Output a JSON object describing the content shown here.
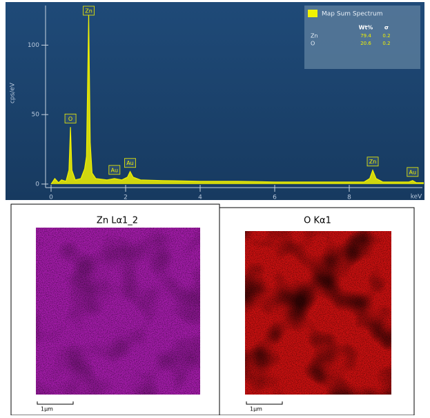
{
  "chart_data": {
    "type": "line",
    "xlabel": "keV",
    "ylabel": "cps/eV",
    "x": [
      0,
      0.1,
      0.2,
      0.28,
      0.4,
      0.48,
      0.52,
      0.56,
      0.65,
      0.8,
      0.9,
      0.95,
      1.01,
      1.05,
      1.1,
      1.2,
      1.5,
      1.7,
      1.9,
      2.05,
      2.12,
      2.2,
      2.4,
      3,
      4,
      5,
      6,
      7,
      8.4,
      8.55,
      8.63,
      8.72,
      8.9,
      9.6,
      9.7,
      9.8,
      10
    ],
    "series": [
      {
        "name": "Map Sum Spectrum",
        "color": "#f2f200",
        "values": [
          0,
          4,
          1,
          3,
          2,
          10,
          41,
          10,
          3,
          4,
          11,
          20,
          122,
          30,
          8,
          4,
          3,
          4,
          3,
          5,
          9,
          5,
          3,
          2.5,
          2,
          2,
          1.5,
          1.5,
          1.5,
          4,
          10,
          4,
          1.5,
          1.5,
          2.5,
          1,
          1
        ]
      }
    ],
    "xlim": [
      0,
      10
    ],
    "xticks": [
      0,
      2,
      4,
      6,
      8
    ],
    "ylim": [
      -9,
      130
    ],
    "yticks": [
      0,
      50,
      100
    ],
    "peak_labels": [
      {
        "label": "O",
        "x": 0.52
      },
      {
        "label": "Zn",
        "x": 1.01
      },
      {
        "label": "Au",
        "x": 1.7
      },
      {
        "label": "Au",
        "x": 2.12
      },
      {
        "label": "Zn",
        "x": 8.63
      },
      {
        "label": "Au",
        "x": 9.7
      }
    ],
    "legend_table": {
      "headers": [
        "Wt%",
        "σ"
      ],
      "rows": [
        [
          "Zn",
          79.4,
          0.2
        ],
        [
          "O",
          20.6,
          0.2
        ]
      ]
    }
  },
  "maps": [
    {
      "title": "Zn Lα1_2",
      "scale_bar": "1μm",
      "color": "#a21ca8"
    },
    {
      "title": "O Kα1",
      "scale_bar": "1μm",
      "color": "#c81010"
    }
  ]
}
